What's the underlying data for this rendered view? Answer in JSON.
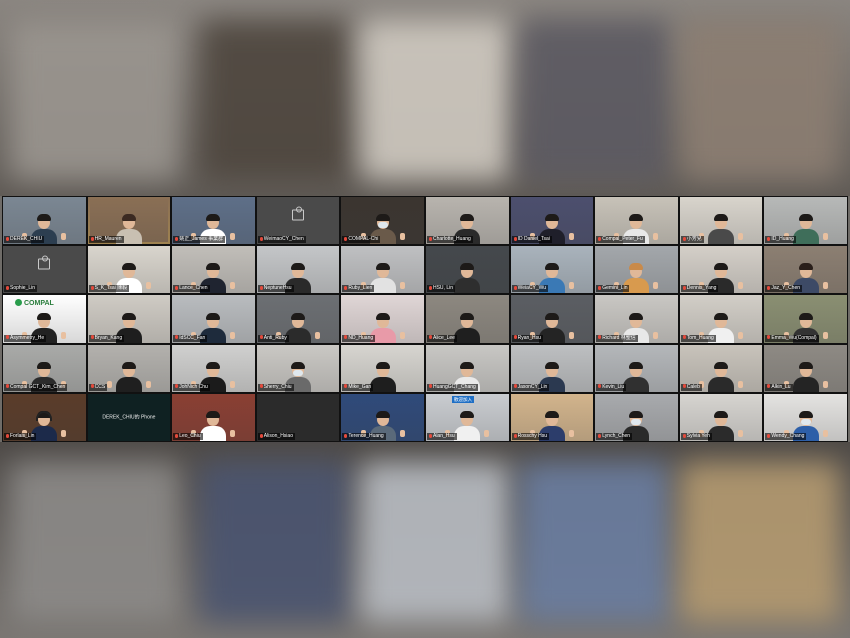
{
  "meeting": {
    "participants": [
      {
        "name": "DEREK_CHIU",
        "bg": "#7b8793",
        "shirt": "#2c3e50",
        "hair": "#1d1a18",
        "thumbs": true
      },
      {
        "name": "HR_Mauren",
        "bg": "#8a6f55",
        "shirt": "#c9c0b2",
        "hair": "#3b2a22",
        "thumbs": false,
        "active": true
      },
      {
        "name": "姚正_James 事業群",
        "bg": "#5e6f88",
        "shirt": "#ffffff",
        "hair": "#1d1a18",
        "thumbs": true
      },
      {
        "name": "WeimaoCY_Chen",
        "placeholder": true
      },
      {
        "name": "COMPAL-Chi",
        "bg": "#3b3530",
        "shirt": "#6a5a4a",
        "hair": "#1d1a18",
        "thumbs": true,
        "mask": true
      },
      {
        "name": "Charlotte_Huang",
        "bg": "#b8b4ae",
        "shirt": "#2a2a2a",
        "hair": "#1d1a18",
        "thumbs": false
      },
      {
        "name": "ID Daniel_Tsai",
        "bg": "#4c4f6e",
        "shirt": "#1f1f2a",
        "hair": "#1d1a18",
        "thumbs": true
      },
      {
        "name": "Compal_Peter_Fu",
        "bg": "#c7c2b8",
        "shirt": "#e8e8e8",
        "hair": "#1d1a18",
        "thumbs": true
      },
      {
        "name": "小芳兒",
        "bg": "#d8d4cc",
        "shirt": "#4a4a4a",
        "hair": "#1d1a18",
        "thumbs": true
      },
      {
        "name": "ID_Huang",
        "bg": "#b7b9b8",
        "shirt": "#3f6e5a",
        "hair": "#1d1a18",
        "thumbs": true
      },
      {
        "name": "Sophie_Lin",
        "placeholder": true
      },
      {
        "name": "S_K_Tsai 陳毅",
        "bg": "#d9d5cd",
        "shirt": "#ffffff",
        "hair": "#1d1a18",
        "thumbs": true
      },
      {
        "name": "Lance_Chen",
        "bg": "#c1beb9",
        "shirt": "#1f2430",
        "hair": "#1d1a18",
        "thumbs": true
      },
      {
        "name": "NeptuneHsu",
        "bg": "#c4c6c8",
        "shirt": "#2a2a2a",
        "hair": "#1d1a18",
        "thumbs": false
      },
      {
        "name": "Ruby_Lien",
        "bg": "#bfc0c2",
        "shirt": "#e2e2e2",
        "hair": "#1d1a18",
        "thumbs": true
      },
      {
        "name": "HSU, Lin",
        "bg": "#44484c",
        "shirt": "#2e2e2e",
        "hair": "#1d1a18",
        "thumbs": false
      },
      {
        "name": "WeiaCY_Wu",
        "bg": "#a9b3bc",
        "shirt": "#3a79b5",
        "hair": "#1d1a18",
        "thumbs": true
      },
      {
        "name": "Gemini_Lin",
        "bg": "#a3a7ab",
        "shirt": "#d89a4e",
        "hair": "#c98a4a",
        "thumbs": true
      },
      {
        "name": "Dennis_Yang",
        "bg": "#d4cfc8",
        "shirt": "#2a2a2a",
        "hair": "#1d1a18",
        "thumbs": true
      },
      {
        "name": "Jaz_Y_Chen",
        "bg": "#8c7f72",
        "shirt": "#3d4a66",
        "hair": "#2a1f1a",
        "thumbs": true
      },
      {
        "name": "Asymmetry_He",
        "bg": "#ffffff",
        "shirt": "#222222",
        "hair": "#1d1a18",
        "thumbs": true,
        "logo": "COMPAL"
      },
      {
        "name": "Bryan_Kang",
        "bg": "#cfcbc4",
        "shirt": "#1e1e1e",
        "hair": "#1d1a18",
        "thumbs": false
      },
      {
        "name": "IdSCC_Fan",
        "bg": "#b9bcbf",
        "shirt": "#1e2b3c",
        "hair": "#1d1a18",
        "thumbs": true
      },
      {
        "name": "Anti_Ruby",
        "bg": "#6c6f73",
        "shirt": "#2b2b2b",
        "hair": "#1d1a18",
        "thumbs": true
      },
      {
        "name": "ND_Huang",
        "bg": "#e0d6d6",
        "shirt": "#e89aa8",
        "hair": "#1d1a18",
        "thumbs": true
      },
      {
        "name": "Alice_Lee",
        "bg": "#8d8880",
        "shirt": "#1f1f1f",
        "hair": "#1d1a18",
        "thumbs": false
      },
      {
        "name": "Ryan_Hsu",
        "bg": "#5b5e63",
        "shirt": "#242424",
        "hair": "#1d1a18",
        "thumbs": true
      },
      {
        "name": "Richard 林聖信",
        "bg": "#c9c7c3",
        "shirt": "#e8e8e8",
        "hair": "#1d1a18",
        "thumbs": true
      },
      {
        "name": "Tom_Huang",
        "bg": "#d2cec7",
        "shirt": "#f0f0f0",
        "hair": "#1d1a18",
        "thumbs": true
      },
      {
        "name": "Emma_Wu(Compal)",
        "bg": "#8a8f72",
        "shirt": "#333333",
        "hair": "#1d1a18",
        "thumbs": true
      },
      {
        "name": "Compal GCT_Kim_Chen",
        "bg": "#a9aaa8",
        "shirt": "#2b2b2b",
        "hair": "#1d1a18",
        "thumbs": true
      },
      {
        "name": "CCS",
        "bg": "#b3b1ad",
        "shirt": "#1f1f1f",
        "hair": "#1d1a18",
        "thumbs": true
      },
      {
        "name": "JohNich Chu",
        "bg": "#d0d0cf",
        "shirt": "#1b1b1b",
        "hair": "#1d1a18",
        "thumbs": true
      },
      {
        "name": "Sherry_Chiu",
        "bg": "#cac8c4",
        "shirt": "#6a6a6a",
        "hair": "#1d1a18",
        "thumbs": false,
        "mask": true
      },
      {
        "name": "Mike_Gan",
        "bg": "#d7d5d0",
        "shirt": "#1e1e1e",
        "hair": "#1d1a18",
        "thumbs": false
      },
      {
        "name": "HuangGCT_Chang",
        "bg": "#c8c7c4",
        "shirt": "#e9e9e9",
        "hair": "#1d1a18",
        "thumbs": false
      },
      {
        "name": "JasonCY_Lin",
        "bg": "#bdbfc1",
        "shirt": "#2b3950",
        "hair": "#1d1a18",
        "thumbs": false
      },
      {
        "name": "Kevin_Liu",
        "bg": "#b4b7ba",
        "shirt": "#303030",
        "hair": "#1d1a18",
        "thumbs": false
      },
      {
        "name": "Caleb",
        "bg": "#c8c3bb",
        "shirt": "#2a2a2a",
        "hair": "#1d1a18",
        "thumbs": true
      },
      {
        "name": "Alkin_Lu",
        "bg": "#8e8a84",
        "shirt": "#242424",
        "hair": "#1d1a18",
        "thumbs": true
      },
      {
        "name": "Forlais_Lin",
        "bg": "#5a3c2a",
        "shirt": "#1c2a4a",
        "hair": "#1d1a18",
        "thumbs": true,
        "headset": true
      },
      {
        "name": "DEREK_CHIU的 Phone",
        "dark": true
      },
      {
        "name": "Leo_Chiu",
        "bg": "#8a3f33",
        "shirt": "#ffffff",
        "hair": "#1d1a18",
        "thumbs": true
      },
      {
        "name": "Alison_Hsiao",
        "dark2": true
      },
      {
        "name": "Terence_Huang",
        "bg": "#2f4a7a",
        "shirt": "#5a6a7a",
        "hair": "#1d1a18",
        "thumbs": true
      },
      {
        "name": "Alan_Hsu",
        "bg": "#c9ccd0",
        "shirt": "#f0f0f0",
        "hair": "#1d1a18",
        "thumbs": true,
        "banner": "歡迎加入"
      },
      {
        "name": "Rosschy Hsu",
        "bg": "#d2b48c",
        "shirt": "#2c3d6b",
        "hair": "#1d1a18",
        "thumbs": true
      },
      {
        "name": "Lynch_Chen",
        "bg": "#a8aaad",
        "shirt": "#2a2a2a",
        "hair": "#1d1a18",
        "thumbs": false,
        "mask": true
      },
      {
        "name": "Sylvia Yeh",
        "bg": "#d6d4d0",
        "shirt": "#2b2b2b",
        "hair": "#1d1a18",
        "thumbs": true
      },
      {
        "name": "Wendy_Chang",
        "bg": "#e4e3e1",
        "shirt": "#2d5fa8",
        "hair": "#1d1a18",
        "thumbs": true,
        "mask": true
      }
    ]
  }
}
